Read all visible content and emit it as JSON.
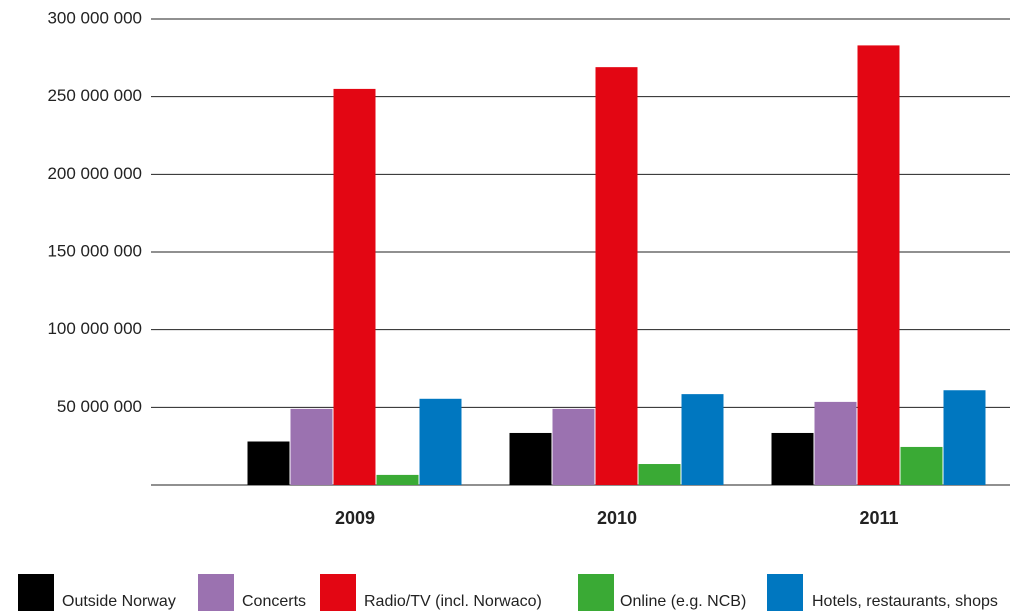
{
  "chart_data": {
    "type": "bar",
    "categories": [
      "2009",
      "2010",
      "2011"
    ],
    "series": [
      {
        "name": "Outside Norway",
        "color": "#000000",
        "values": [
          28000000,
          33500000,
          33500000
        ]
      },
      {
        "name": "Concerts",
        "color": "#9b72b0",
        "values": [
          49000000,
          49000000,
          53500000
        ]
      },
      {
        "name": "Radio/TV (incl. Norwaco)",
        "color": "#e30613",
        "values": [
          255000000,
          269000000,
          283000000
        ]
      },
      {
        "name": "Online (e.g. NCB)",
        "color": "#3aaa35",
        "values": [
          6500000,
          13500000,
          24500000
        ]
      },
      {
        "name": "Hotels, restaurants, shops",
        "color": "#0077c0",
        "values": [
          55500000,
          58500000,
          61000000
        ]
      }
    ],
    "ylim": [
      0,
      300000000
    ],
    "yticks": [
      {
        "value": 50000000,
        "label": "50 000 000"
      },
      {
        "value": 100000000,
        "label": "100 000 000"
      },
      {
        "value": 150000000,
        "label": "150 000 000"
      },
      {
        "value": 200000000,
        "label": "200 000 000"
      },
      {
        "value": 250000000,
        "label": "250 000 000"
      },
      {
        "value": 300000000,
        "label": "300 000 000"
      }
    ],
    "grid": true,
    "legend": "bottom"
  }
}
